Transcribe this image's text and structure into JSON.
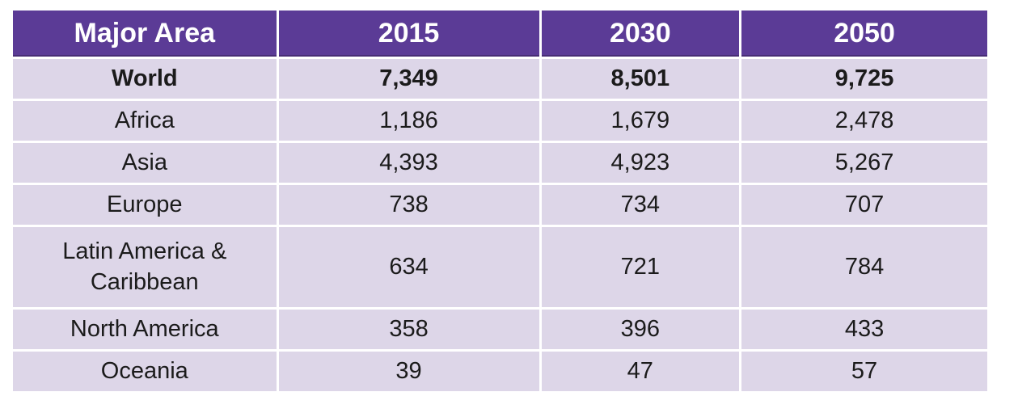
{
  "table": {
    "columns": [
      "Major Area",
      "2015",
      "2030",
      "2050"
    ],
    "rows": [
      {
        "bold": true,
        "cells": [
          "World",
          "7,349",
          "8,501",
          "9,725"
        ]
      },
      {
        "bold": false,
        "cells": [
          "Africa",
          "1,186",
          "1,679",
          "2,478"
        ]
      },
      {
        "bold": false,
        "cells": [
          "Asia",
          "4,393",
          "4,923",
          "5,267"
        ]
      },
      {
        "bold": false,
        "cells": [
          "Europe",
          "738",
          "734",
          "707"
        ]
      },
      {
        "bold": false,
        "cells": [
          "Latin America & Caribbean",
          "634",
          "721",
          "784"
        ]
      },
      {
        "bold": false,
        "cells": [
          "North America",
          "358",
          "396",
          "433"
        ]
      },
      {
        "bold": false,
        "cells": [
          "Oceania",
          "39",
          "47",
          "57"
        ]
      }
    ]
  },
  "chart_data": {
    "type": "table",
    "columns": [
      "Major Area",
      "2015",
      "2030",
      "2050"
    ],
    "rows": [
      [
        "World",
        7349,
        8501,
        9725
      ],
      [
        "Africa",
        1186,
        1679,
        2478
      ],
      [
        "Asia",
        4393,
        4923,
        5267
      ],
      [
        "Europe",
        738,
        734,
        707
      ],
      [
        "Latin America & Caribbean",
        634,
        721,
        784
      ],
      [
        "North America",
        358,
        396,
        433
      ],
      [
        "Oceania",
        39,
        47,
        57
      ]
    ]
  },
  "colors": {
    "header_bg": "#5B3B96",
    "header_border_bottom": "#472D75",
    "header_text": "#FFFFFF",
    "row_bg": "#DDD6E8",
    "body_text": "#1B1B1B",
    "separator": "#FFFFFF",
    "page_bg": "#FFFFFF"
  }
}
